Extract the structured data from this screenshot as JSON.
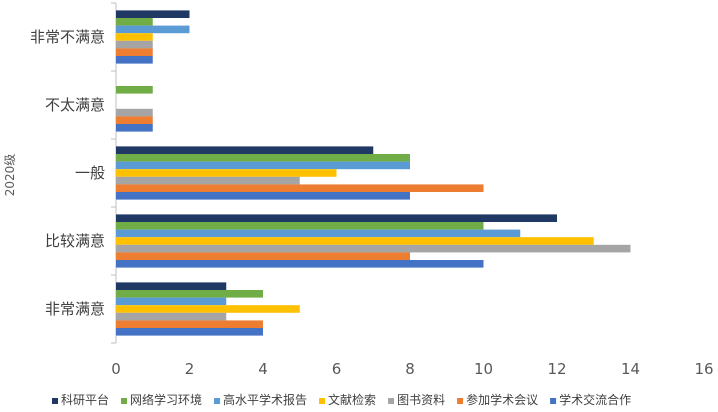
{
  "chart_data": {
    "type": "bar",
    "orientation": "horizontal",
    "group_label": "2020级",
    "categories": [
      "非常不满意",
      "不太满意",
      "一般",
      "比较满意",
      "非常满意"
    ],
    "xlim": [
      0,
      16
    ],
    "x_ticks": [
      0,
      2,
      4,
      6,
      8,
      10,
      12,
      14,
      16
    ],
    "legend_position": "bottom",
    "series": [
      {
        "name": "科研平台",
        "color": "#203864",
        "values": [
          2,
          0,
          7,
          12,
          3
        ]
      },
      {
        "name": "网络学习环境",
        "color": "#70AD47",
        "values": [
          1,
          1,
          8,
          10,
          4
        ]
      },
      {
        "name": "高水平学术报告",
        "color": "#5B9BD5",
        "values": [
          2,
          0,
          8,
          11,
          3
        ]
      },
      {
        "name": "文献检索",
        "color": "#FFC000",
        "values": [
          1,
          0,
          6,
          13,
          5
        ]
      },
      {
        "name": "图书资料",
        "color": "#A5A5A5",
        "values": [
          1,
          1,
          5,
          14,
          3
        ]
      },
      {
        "name": "参加学术会议",
        "color": "#ED7D31",
        "values": [
          1,
          1,
          10,
          8,
          4
        ]
      },
      {
        "name": "学术交流合作",
        "color": "#4472C4",
        "values": [
          1,
          1,
          8,
          10,
          4
        ]
      }
    ]
  }
}
